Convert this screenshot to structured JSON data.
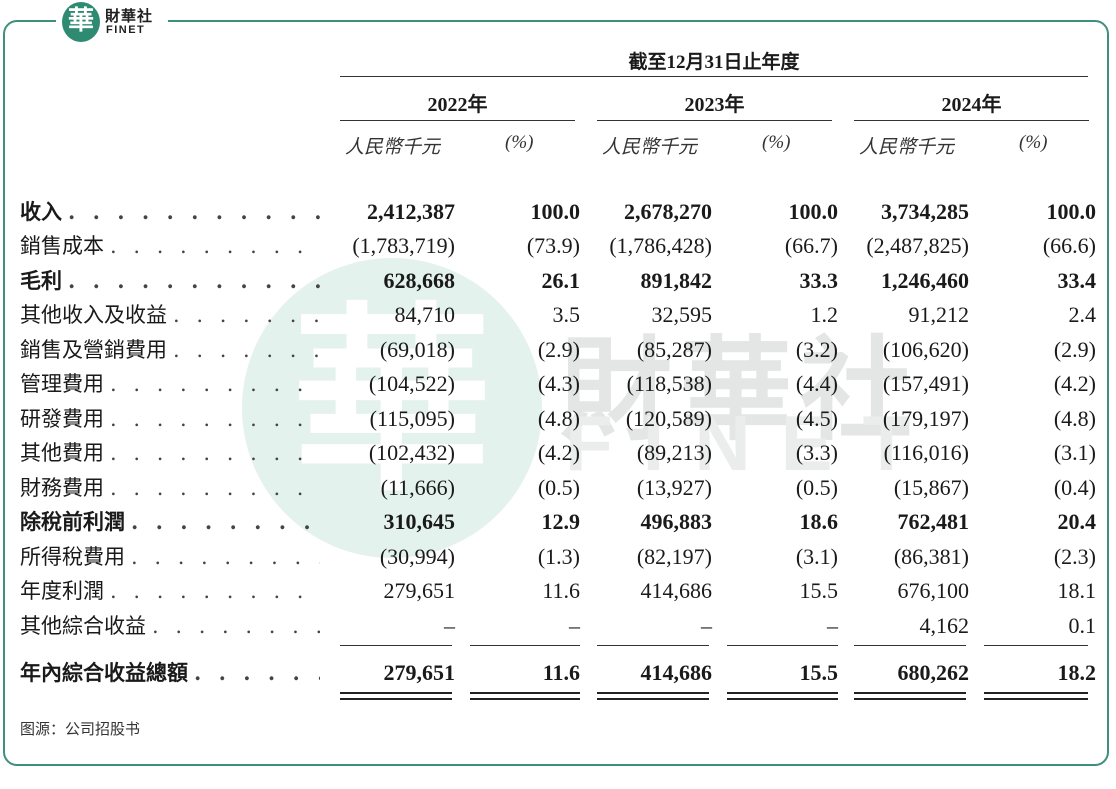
{
  "brand": {
    "mark": "華",
    "name_cn": "財華社",
    "name_en": "FINET"
  },
  "watermark": {
    "char": "華",
    "cn": "財華社",
    "en": "FINET"
  },
  "header": {
    "period": "截至12月31日止年度",
    "years": [
      "2022年",
      "2023年",
      "2024年"
    ],
    "unit_label": "人民幣千元",
    "pct_label": "(%)"
  },
  "rows": [
    {
      "label": "收入",
      "bold": true,
      "values": [
        "2,412,387",
        "100.0",
        "2,678,270",
        "100.0",
        "3,734,285",
        "100.0"
      ]
    },
    {
      "label": "銷售成本",
      "bold": false,
      "values": [
        "(1,783,719)",
        "(73.9)",
        "(1,786,428)",
        "(66.7)",
        "(2,487,825)",
        "(66.6)"
      ]
    },
    {
      "label": "毛利",
      "bold": true,
      "values": [
        "628,668",
        "26.1",
        "891,842",
        "33.3",
        "1,246,460",
        "33.4"
      ]
    },
    {
      "label": "其他收入及收益",
      "bold": false,
      "values": [
        "84,710",
        "3.5",
        "32,595",
        "1.2",
        "91,212",
        "2.4"
      ]
    },
    {
      "label": "銷售及營銷費用",
      "bold": false,
      "values": [
        "(69,018)",
        "(2.9)",
        "(85,287)",
        "(3.2)",
        "(106,620)",
        "(2.9)"
      ]
    },
    {
      "label": "管理費用",
      "bold": false,
      "values": [
        "(104,522)",
        "(4.3)",
        "(118,538)",
        "(4.4)",
        "(157,491)",
        "(4.2)"
      ]
    },
    {
      "label": "研發費用",
      "bold": false,
      "values": [
        "(115,095)",
        "(4.8)",
        "(120,589)",
        "(4.5)",
        "(179,197)",
        "(4.8)"
      ]
    },
    {
      "label": "其他費用",
      "bold": false,
      "values": [
        "(102,432)",
        "(4.2)",
        "(89,213)",
        "(3.3)",
        "(116,016)",
        "(3.1)"
      ]
    },
    {
      "label": "財務費用",
      "bold": false,
      "values": [
        "(11,666)",
        "(0.5)",
        "(13,927)",
        "(0.5)",
        "(15,867)",
        "(0.4)"
      ]
    },
    {
      "label": "除稅前利潤",
      "bold": true,
      "values": [
        "310,645",
        "12.9",
        "496,883",
        "18.6",
        "762,481",
        "20.4"
      ]
    },
    {
      "label": "所得稅費用",
      "bold": false,
      "values": [
        "(30,994)",
        "(1.3)",
        "(82,197)",
        "(3.1)",
        "(86,381)",
        "(2.3)"
      ]
    },
    {
      "label": "年度利潤",
      "bold": false,
      "values": [
        "279,651",
        "11.6",
        "414,686",
        "15.5",
        "676,100",
        "18.1"
      ]
    },
    {
      "label": "其他綜合收益",
      "bold": false,
      "values": [
        "–",
        "–",
        "–",
        "–",
        "4,162",
        "0.1"
      ]
    },
    {
      "label": "年內綜合收益總額",
      "bold": true,
      "values": [
        "279,651",
        "11.6",
        "414,686",
        "15.5",
        "680,262",
        "18.2"
      ]
    }
  ],
  "source": "图源：公司招股书",
  "colors": {
    "frame": "#3f8f7f",
    "logo": "#2f8a72"
  }
}
